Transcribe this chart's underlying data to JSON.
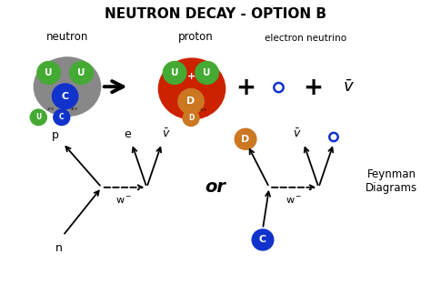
{
  "title": "NEUTRON DECAY - OPTION B",
  "bg_color": "#ffffff",
  "neutron_label": "neutron",
  "proton_label": "proton",
  "electron_neutrino_label": "electron neutrino",
  "neutron_color": "#888888",
  "proton_color": "#cc2200",
  "u_quark_color": "#44aa33",
  "d_quark_color": "#cc7722",
  "blue_color": "#1133cc",
  "feynman_label": "Feynman\nDiagrams"
}
